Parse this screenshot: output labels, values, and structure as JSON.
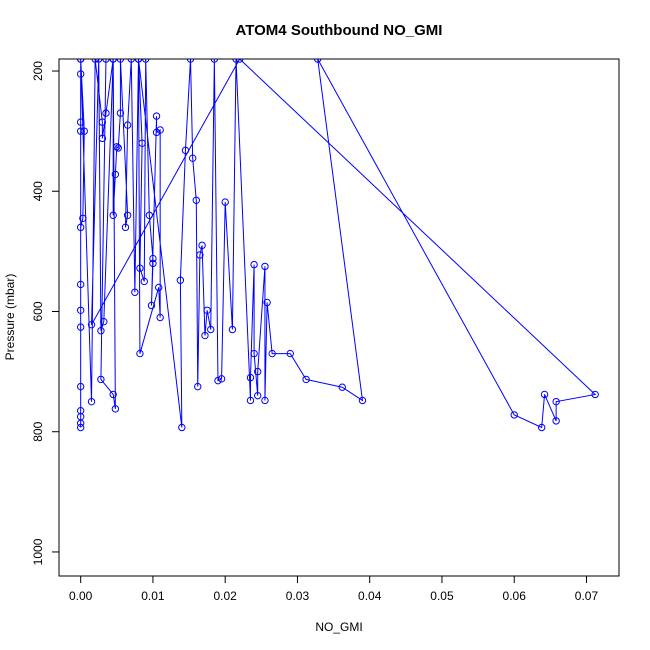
{
  "chart_data": {
    "type": "line",
    "title": "ATOM4 Southbound NO_GMI",
    "xlabel": "NO_GMI",
    "ylabel": "Pressure (mbar)",
    "xlim": [
      -0.003,
      0.0745
    ],
    "ylim": [
      1040,
      180
    ],
    "y_reversed": true,
    "x_ticks": [
      0.0,
      0.01,
      0.02,
      0.03,
      0.04,
      0.05,
      0.06,
      0.07
    ],
    "x_tick_labels": [
      "0.00",
      "0.01",
      "0.02",
      "0.03",
      "0.04",
      "0.05",
      "0.06",
      "0.07"
    ],
    "y_ticks": [
      200,
      400,
      600,
      800,
      1000
    ],
    "y_tick_labels": [
      "200",
      "400",
      "600",
      "800",
      "1000"
    ],
    "grid": false,
    "legend": "none",
    "series_color": "#0000ff",
    "series": [
      {
        "points": [
          [
            0.0,
            205
          ],
          [
            0.0,
            285
          ],
          [
            0.0,
            300
          ],
          [
            0.0,
            180
          ],
          [
            0.0005,
            300
          ],
          [
            0.0003,
            445
          ],
          [
            0.0,
            460
          ],
          [
            0.0,
            555
          ],
          [
            0.0,
            598
          ],
          [
            0.0,
            626
          ],
          [
            0.0,
            725
          ],
          [
            0.0,
            765
          ],
          [
            0.0,
            775
          ],
          [
            0.0,
            786
          ],
          [
            0.0,
            793
          ],
          [
            0.0,
            180
          ],
          [
            0.0015,
            750
          ],
          [
            0.002,
            180
          ],
          [
            0.003,
            285
          ],
          [
            0.003,
            312
          ],
          [
            0.0035,
            270
          ],
          [
            0.0045,
            180
          ],
          [
            0.0045,
            440
          ],
          [
            0.0048,
            372
          ],
          [
            0.005,
            326
          ],
          [
            0.0052,
            328
          ],
          [
            0.0055,
            270
          ],
          [
            0.0055,
            180
          ],
          [
            0.0065,
            440
          ],
          [
            0.0062,
            460
          ],
          [
            0.0065,
            290
          ],
          [
            0.007,
            180
          ],
          [
            0.0075,
            568
          ],
          [
            0.008,
            180
          ],
          [
            0.0085,
            320
          ],
          [
            0.0082,
            528
          ],
          [
            0.0088,
            550
          ],
          [
            0.009,
            180
          ],
          [
            0.0095,
            440
          ],
          [
            0.01,
            512
          ],
          [
            0.01,
            520
          ],
          [
            0.0098,
            590
          ],
          [
            0.0105,
            275
          ],
          [
            0.0105,
            302
          ],
          [
            0.011,
            298
          ],
          [
            0.011,
            610
          ],
          [
            0.0108,
            560
          ],
          [
            0.0082,
            670
          ],
          [
            0.008,
            180
          ],
          [
            0.014,
            793
          ],
          [
            0.0138,
            548
          ],
          [
            0.0145,
            332
          ],
          [
            0.0152,
            180
          ],
          [
            0.0155,
            345
          ],
          [
            0.016,
            415
          ],
          [
            0.0162,
            725
          ],
          [
            0.0165,
            506
          ],
          [
            0.0168,
            490
          ],
          [
            0.0172,
            640
          ],
          [
            0.0175,
            598
          ],
          [
            0.018,
            630
          ],
          [
            0.0185,
            180
          ],
          [
            0.019,
            715
          ],
          [
            0.0195,
            712
          ],
          [
            0.02,
            418
          ],
          [
            0.021,
            630
          ],
          [
            0.0215,
            180
          ],
          [
            0.0235,
            748
          ],
          [
            0.0235,
            710
          ],
          [
            0.024,
            522
          ],
          [
            0.024,
            670
          ],
          [
            0.0245,
            740
          ],
          [
            0.0245,
            700
          ],
          [
            0.0255,
            525
          ],
          [
            0.0255,
            748
          ],
          [
            0.0258,
            585
          ],
          [
            0.0265,
            670
          ],
          [
            0.029,
            670
          ],
          [
            0.0312,
            713
          ],
          [
            0.0362,
            726
          ],
          [
            0.039,
            748
          ],
          [
            0.0328,
            180
          ],
          [
            0.06,
            772
          ],
          [
            0.0638,
            793
          ],
          [
            0.0642,
            738
          ],
          [
            0.0658,
            782
          ],
          [
            0.0658,
            750
          ],
          [
            0.0712,
            738
          ],
          [
            0.022,
            180
          ],
          [
            0.0015,
            622
          ],
          [
            0.0025,
            180
          ],
          [
            0.0028,
            632
          ],
          [
            0.0032,
            617
          ],
          [
            0.0045,
            180
          ],
          [
            0.0048,
            762
          ],
          [
            0.0045,
            738
          ],
          [
            0.0028,
            713
          ],
          [
            0.0035,
            180
          ]
        ]
      }
    ]
  }
}
